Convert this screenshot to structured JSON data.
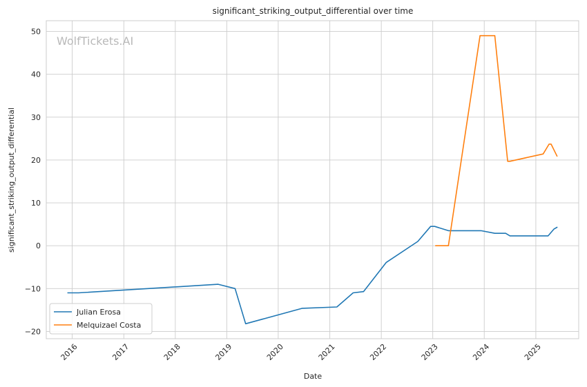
{
  "watermark": "WolfTickets.AI",
  "chart_data": {
    "type": "line",
    "title": "significant_striking_output_differential over time",
    "xlabel": "Date",
    "ylabel": "significant_striking_output_differential",
    "xlim": [
      "2015-07-01",
      "2025-11-01"
    ],
    "ylim": [
      -21.7,
      52.5
    ],
    "x_ticks": [
      "2016-01-01",
      "2017-01-01",
      "2018-01-01",
      "2019-01-01",
      "2020-01-01",
      "2021-01-01",
      "2022-01-01",
      "2023-01-01",
      "2024-01-01",
      "2025-01-01"
    ],
    "x_tick_labels": [
      "2016",
      "2017",
      "2018",
      "2019",
      "2020",
      "2021",
      "2022",
      "2023",
      "2024",
      "2025"
    ],
    "y_ticks": [
      -20,
      -10,
      0,
      10,
      20,
      30,
      40,
      50
    ],
    "y_tick_labels": [
      "−20",
      "−10",
      "0",
      "10",
      "20",
      "30",
      "40",
      "50"
    ],
    "grid": true,
    "legend_position": "lower-left",
    "series": [
      {
        "name": "Julian Erosa",
        "color": "#1f77b4",
        "points": [
          [
            "2015-12-01",
            -11.0
          ],
          [
            "2016-02-15",
            -11.0
          ],
          [
            "2018-11-01",
            -9.0
          ],
          [
            "2019-03-01",
            -10.0
          ],
          [
            "2019-05-15",
            -18.2
          ],
          [
            "2020-06-20",
            -14.6
          ],
          [
            "2021-02-20",
            -14.3
          ],
          [
            "2021-06-15",
            -11.0
          ],
          [
            "2021-08-28",
            -10.7
          ],
          [
            "2022-02-05",
            -3.9
          ],
          [
            "2022-09-17",
            1.0
          ],
          [
            "2022-12-17",
            4.5
          ],
          [
            "2023-01-15",
            4.5
          ],
          [
            "2023-04-22",
            3.5
          ],
          [
            "2023-12-09",
            3.5
          ],
          [
            "2024-03-16",
            2.9
          ],
          [
            "2024-06-01",
            2.9
          ],
          [
            "2024-07-01",
            2.3
          ],
          [
            "2025-02-15",
            2.3
          ],
          [
            "2025-03-29",
            2.3
          ],
          [
            "2025-05-10",
            3.9
          ],
          [
            "2025-05-31",
            4.3
          ]
        ]
      },
      {
        "name": "Melquizael Costa",
        "color": "#ff7f0e",
        "points": [
          [
            "2023-01-21",
            0.0
          ],
          [
            "2023-04-22",
            0.0
          ],
          [
            "2023-12-02",
            49.0
          ],
          [
            "2024-03-16",
            49.0
          ],
          [
            "2024-06-15",
            19.7
          ],
          [
            "2024-07-01",
            19.7
          ],
          [
            "2025-02-22",
            21.4
          ],
          [
            "2025-04-05",
            23.7
          ],
          [
            "2025-04-19",
            23.7
          ],
          [
            "2025-05-31",
            20.9
          ]
        ]
      }
    ]
  }
}
